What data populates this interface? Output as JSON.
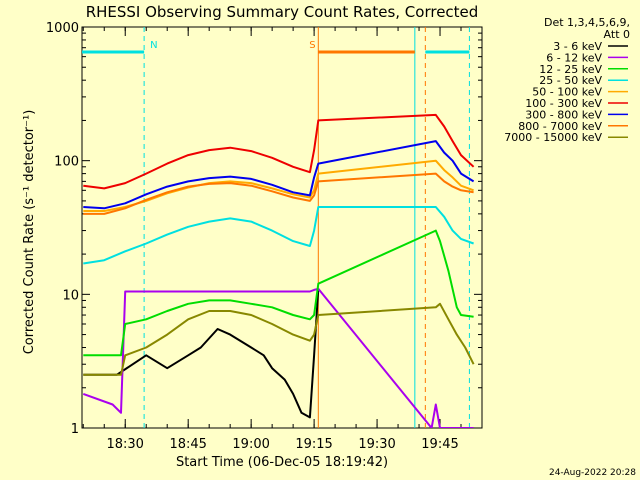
{
  "chart_data": {
    "type": "line",
    "title": "RHESSI Observing Summary Count Rates, Corrected",
    "xlabel": "Start Time (06-Dec-05 18:19:42)",
    "ylabel": "Corrected Count Rate (s⁻¹ detector⁻¹)",
    "footer_date": "24-Aug-2022 20:28",
    "legend_header": [
      "Det 1,3,4,5,6,9,",
      "Att 0"
    ],
    "legend_position": "right",
    "y_scale": "log",
    "ylim": [
      1,
      1000
    ],
    "y_ticks": [
      {
        "v": 1,
        "label": "1"
      },
      {
        "v": 10,
        "label": "10"
      },
      {
        "v": 100,
        "label": "100"
      },
      {
        "v": 1000,
        "label": "1000"
      }
    ],
    "xlim": [
      "18:19:42",
      "19:55:00"
    ],
    "x_ticks": [
      {
        "t": "18:30",
        "label": "18:30"
      },
      {
        "t": "18:45",
        "label": "18:45"
      },
      {
        "t": "19:00",
        "label": "19:00"
      },
      {
        "t": "19:15",
        "label": "19:15"
      },
      {
        "t": "19:30",
        "label": "19:30"
      },
      {
        "t": "19:45",
        "label": "19:45"
      }
    ],
    "series": [
      {
        "name": "3 - 6 keV",
        "color": "#000000",
        "x": [
          "18:20",
          "18:25",
          "18:28",
          "18:35",
          "18:40",
          "18:45",
          "18:48",
          "18:52",
          "18:55",
          "19:00",
          "19:03",
          "19:05",
          "19:08",
          "19:10",
          "19:12",
          "19:14",
          "19:15",
          "19:16"
        ],
        "y": [
          2.5,
          2.5,
          2.5,
          3.5,
          2.8,
          3.5,
          4.0,
          5.5,
          5.0,
          4.0,
          3.5,
          2.8,
          2.3,
          1.8,
          1.3,
          1.2,
          3.5,
          11
        ]
      },
      {
        "name": "6 - 12 keV",
        "color": "#aa00ee",
        "x": [
          "18:20",
          "18:27",
          "18:29",
          "18:30",
          "18:35",
          "18:40",
          "18:45",
          "18:50",
          "18:55",
          "19:00",
          "19:05",
          "19:10",
          "19:14",
          "19:15",
          "19:16",
          "19:43",
          "19:44",
          "19:45",
          "19:50",
          "19:53"
        ],
        "y": [
          1.8,
          1.5,
          1.3,
          10.5,
          10.5,
          10.5,
          10.5,
          10.5,
          10.5,
          10.5,
          10.5,
          10.5,
          10.5,
          10.8,
          11,
          1.0,
          1.5,
          1.0,
          1.0,
          1.0
        ]
      },
      {
        "name": "12 - 25 keV",
        "color": "#00dd00",
        "x": [
          "18:20",
          "18:29",
          "18:30",
          "18:35",
          "18:40",
          "18:45",
          "18:50",
          "18:55",
          "19:00",
          "19:05",
          "19:10",
          "19:14",
          "19:15",
          "19:16",
          "19:44",
          "19:45",
          "19:47",
          "19:49",
          "19:50",
          "19:53"
        ],
        "y": [
          3.5,
          3.5,
          6.0,
          6.5,
          7.5,
          8.5,
          9.0,
          9.0,
          8.5,
          8.0,
          7.0,
          6.5,
          7.0,
          12,
          30,
          25,
          15,
          8,
          7,
          6.8
        ]
      },
      {
        "name": "25 - 50 keV",
        "color": "#00e0e0",
        "x": [
          "18:20",
          "18:25",
          "18:30",
          "18:35",
          "18:40",
          "18:45",
          "18:50",
          "18:55",
          "19:00",
          "19:05",
          "19:10",
          "19:14",
          "19:15",
          "19:16",
          "19:44",
          "19:46",
          "19:48",
          "19:50",
          "19:53"
        ],
        "y": [
          17,
          18,
          21,
          24,
          28,
          32,
          35,
          37,
          35,
          30,
          25,
          23,
          30,
          45,
          45,
          38,
          30,
          26,
          24
        ]
      },
      {
        "name": "50 - 100 keV",
        "color": "#ffaa00",
        "x": [
          "18:20",
          "18:25",
          "18:30",
          "18:35",
          "18:40",
          "18:45",
          "18:50",
          "18:55",
          "19:00",
          "19:05",
          "19:10",
          "19:14",
          "19:15",
          "19:16",
          "19:44",
          "19:46",
          "19:48",
          "19:50",
          "19:53"
        ],
        "y": [
          42,
          42,
          45,
          50,
          57,
          63,
          68,
          70,
          68,
          62,
          56,
          53,
          60,
          80,
          100,
          85,
          75,
          65,
          60
        ]
      },
      {
        "name": "100 - 300 keV",
        "color": "#ee0000",
        "x": [
          "18:20",
          "18:25",
          "18:30",
          "18:35",
          "18:40",
          "18:45",
          "18:50",
          "18:55",
          "19:00",
          "19:05",
          "19:10",
          "19:14",
          "19:15",
          "19:16",
          "19:44",
          "19:46",
          "19:48",
          "19:50",
          "19:53"
        ],
        "y": [
          65,
          62,
          68,
          80,
          95,
          110,
          120,
          125,
          118,
          105,
          90,
          82,
          120,
          200,
          220,
          180,
          140,
          110,
          90
        ]
      },
      {
        "name": "300 - 800 keV",
        "color": "#0000ee",
        "x": [
          "18:20",
          "18:25",
          "18:30",
          "18:35",
          "18:40",
          "18:45",
          "18:50",
          "18:55",
          "19:00",
          "19:05",
          "19:10",
          "19:14",
          "19:15",
          "19:16",
          "19:44",
          "19:46",
          "19:48",
          "19:50",
          "19:53"
        ],
        "y": [
          45,
          44,
          48,
          56,
          64,
          70,
          74,
          76,
          73,
          66,
          58,
          55,
          75,
          95,
          140,
          115,
          100,
          80,
          70
        ]
      },
      {
        "name": "800 - 7000 keV",
        "color": "#ff7700",
        "x": [
          "18:20",
          "18:25",
          "18:30",
          "18:35",
          "18:40",
          "18:45",
          "18:50",
          "18:55",
          "19:00",
          "19:05",
          "19:10",
          "19:14",
          "19:15",
          "19:16",
          "19:44",
          "19:46",
          "19:48",
          "19:50",
          "19:53"
        ],
        "y": [
          40,
          40,
          44,
          51,
          58,
          64,
          67,
          68,
          65,
          59,
          53,
          50,
          55,
          70,
          80,
          70,
          64,
          60,
          58
        ]
      },
      {
        "name": "7000 - 15000 keV",
        "color": "#888800",
        "x": [
          "18:20",
          "18:29",
          "18:30",
          "18:35",
          "18:40",
          "18:45",
          "18:50",
          "18:55",
          "19:00",
          "19:05",
          "19:10",
          "19:14",
          "19:15",
          "19:16",
          "19:44",
          "19:45",
          "19:47",
          "19:49",
          "19:51",
          "19:53"
        ],
        "y": [
          2.5,
          2.5,
          3.5,
          4.0,
          5.0,
          6.5,
          7.5,
          7.5,
          7.0,
          6.0,
          5.0,
          4.5,
          5.0,
          7.0,
          8.0,
          8.5,
          6.5,
          5.0,
          4.0,
          3.0
        ]
      }
    ],
    "state_bars": [
      {
        "label": "N",
        "color": "#00e0e0",
        "start": "18:19:42",
        "end": "18:34:30"
      },
      {
        "label": "",
        "color": "#00e0e0",
        "start": "19:41:30",
        "end": "19:52:00"
      },
      {
        "label": "S",
        "color": "#ff7700",
        "start": "19:16:00",
        "end": "19:39:00"
      }
    ],
    "vertical_markers": [
      {
        "t": "18:34:30",
        "color": "#00e0e0",
        "style": "dashed"
      },
      {
        "t": "19:16:00",
        "color": "#ff7700",
        "style": "solid"
      },
      {
        "t": "19:39:00",
        "color": "#00e0e0",
        "style": "solid"
      },
      {
        "t": "19:41:30",
        "color": "#ff7700",
        "style": "dashed"
      },
      {
        "t": "19:52:00",
        "color": "#00e0e0",
        "style": "dashed"
      }
    ]
  }
}
